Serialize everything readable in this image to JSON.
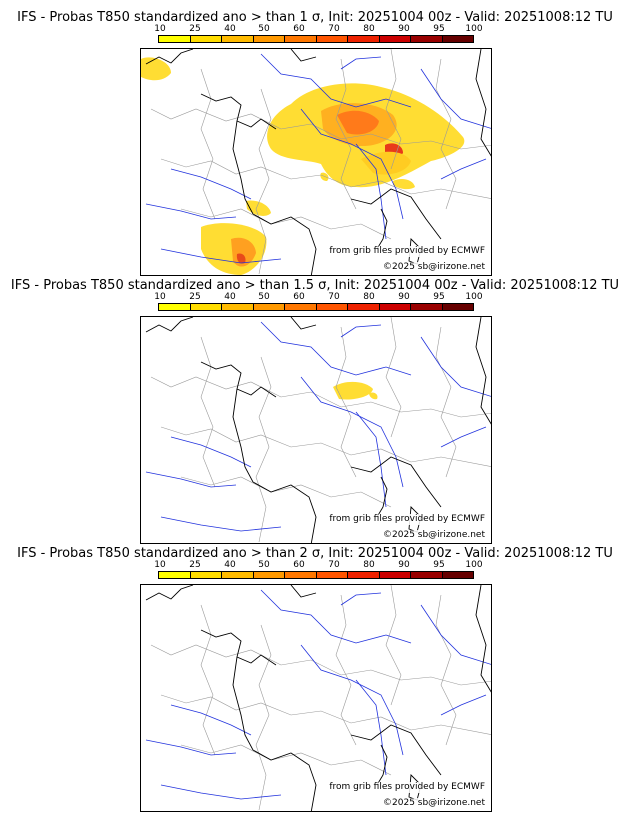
{
  "panels": [
    {
      "title": "IFS - Probas T850  standardized ano > than 1 σ, Init: 20251004 00z - Valid: 20251008:12 TU",
      "source_text": "from grib files provided by ECMWF",
      "copyright_text": "©2025 sb@irizone.net"
    },
    {
      "title": "IFS - Probas T850  standardized ano > than 1.5 σ, Init: 20251004 00z - Valid: 20251008:12 TU",
      "source_text": "from grib files provided by ECMWF",
      "copyright_text": "©2025 sb@irizone.net"
    },
    {
      "title": "IFS - Probas T850  standardized ano > than 2 σ, Init: 20251004 00z - Valid: 20251008:12 TU",
      "source_text": "from grib files provided by ECMWF",
      "copyright_text": "©2025 sb@irizone.net"
    }
  ],
  "colorbar": {
    "ticks": [
      "10",
      "25",
      "40",
      "50",
      "60",
      "70",
      "80",
      "90",
      "95",
      "100"
    ],
    "colors": [
      "#ffff00",
      "#ffdd00",
      "#ffbb00",
      "#ff9900",
      "#ff7700",
      "#ff5500",
      "#ee2200",
      "#cc0000",
      "#990000",
      "#660000"
    ]
  },
  "colors": {
    "river": "#2233dd",
    "border": "#999999",
    "coast": "#000000"
  }
}
